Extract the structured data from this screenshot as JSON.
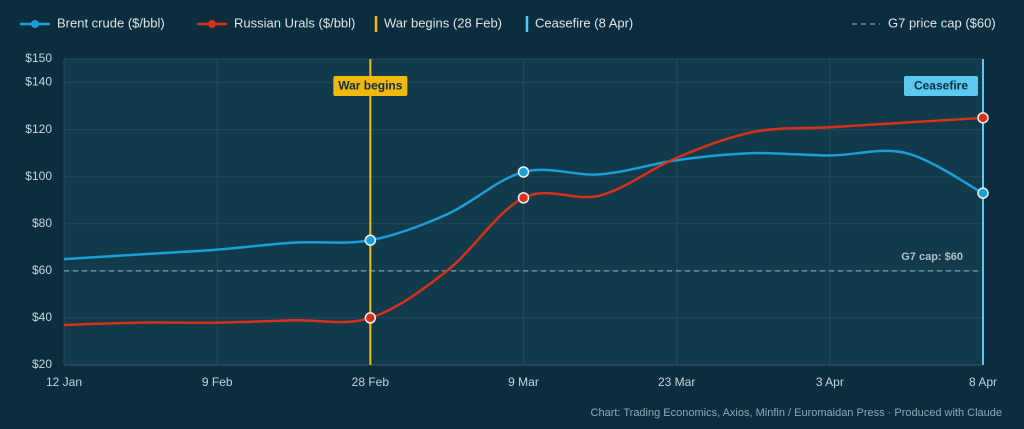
{
  "chart_data": {
    "type": "line",
    "categories": [
      "12 Jan",
      null,
      "9 Feb",
      null,
      "28 Feb",
      null,
      "9 Mar",
      null,
      "23 Mar",
      null,
      "3 Apr",
      null,
      "8 Apr"
    ],
    "series": [
      {
        "name": "Brent crude ($/bbl)",
        "color": "#1a9fd8",
        "values": [
          65,
          67,
          69,
          72,
          73,
          84,
          102,
          101,
          107,
          110,
          109,
          110,
          93
        ]
      },
      {
        "name": "Russian Urals ($/bbl)",
        "color": "#d9301a",
        "values": [
          37,
          38,
          38,
          39,
          40,
          60,
          91,
          92,
          108,
          119,
          121,
          123,
          125
        ]
      }
    ],
    "markers_at": [
      "28 Feb",
      "9 Mar",
      "8 Apr"
    ],
    "ylim": [
      20,
      150
    ],
    "yticks": [
      {
        "value": 20,
        "label": "$20"
      },
      {
        "value": 40,
        "label": "$40"
      },
      {
        "value": 60,
        "label": "$60"
      },
      {
        "value": 80,
        "label": "$80"
      },
      {
        "value": 100,
        "label": "$100"
      },
      {
        "value": 120,
        "label": "$120"
      },
      {
        "value": 140,
        "label": "$140"
      },
      {
        "value": 150,
        "label": "$150"
      }
    ],
    "grid": true,
    "events": [
      {
        "at": "28 Feb",
        "label": "War begins",
        "legend": "War begins (28 Feb)",
        "color": "#f0b90b"
      },
      {
        "at": "8 Apr",
        "label": "Ceasefire",
        "legend": "Ceasefire (8 Apr)",
        "color": "#5bc8f0"
      }
    ],
    "reference_line": {
      "value": 60,
      "label": "G7 cap: $60",
      "legend": "G7 price cap ($60)",
      "color": "#6f8e99"
    },
    "source": "Chart: Trading Economics, Axios, Minfin / Euromaidan Press  ·  Produced with Claude"
  }
}
